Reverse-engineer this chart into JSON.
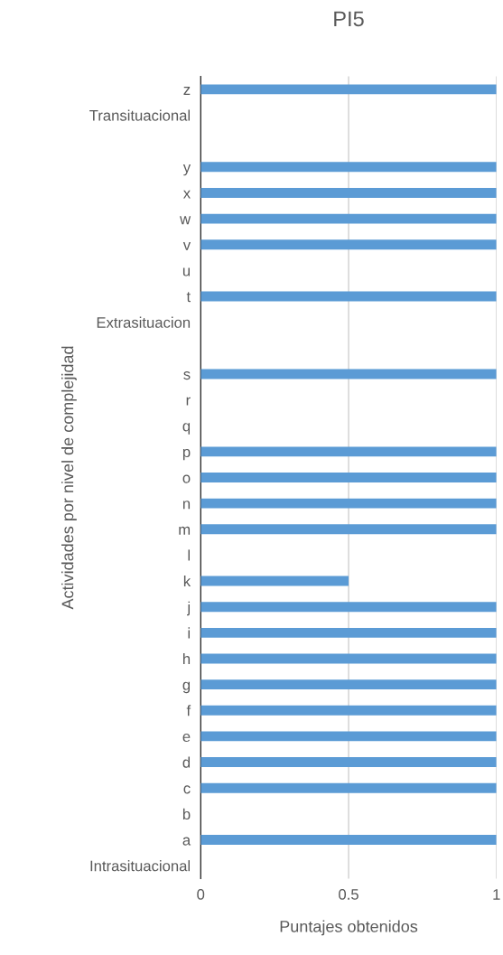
{
  "chart_data": {
    "type": "bar",
    "orientation": "horizontal",
    "title": "PI5",
    "xlabel": "Puntajes obtenidos",
    "ylabel": "Actividades por nivel de complejidad",
    "categories": [
      "z",
      "Transituacional",
      null,
      "y",
      "x",
      "w",
      "v",
      "u",
      "t",
      "Extrasituacion",
      null,
      "s",
      "r",
      "q",
      "p",
      "o",
      "n",
      "m",
      "l",
      "k",
      "j",
      "i",
      "h",
      "g",
      "f",
      "e",
      "d",
      "c",
      "b",
      "a",
      "Intrasituacional"
    ],
    "values": [
      1,
      null,
      null,
      1,
      1,
      1,
      1,
      0,
      1,
      null,
      null,
      1,
      0,
      0,
      1,
      1,
      1,
      1,
      0,
      0.5,
      1,
      1,
      1,
      1,
      1,
      1,
      1,
      1,
      0,
      1,
      null
    ],
    "color": "#5b9bd5",
    "xlim": [
      0,
      1
    ],
    "xticks": [
      0,
      0.5,
      1
    ],
    "grid": "x"
  }
}
